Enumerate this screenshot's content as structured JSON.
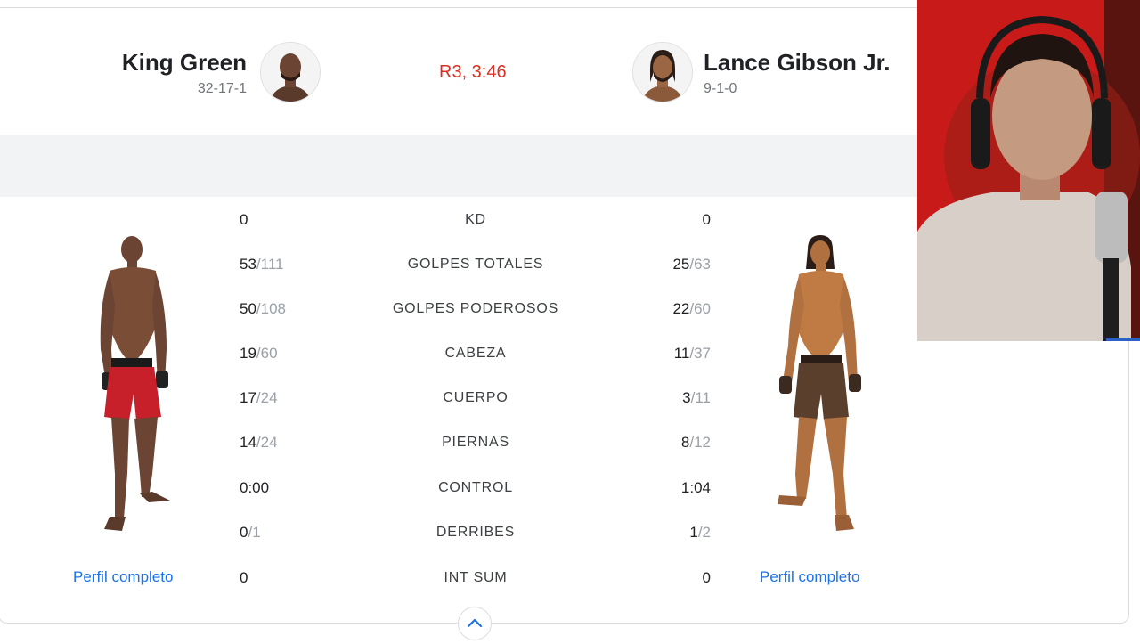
{
  "fight": {
    "status": "R3, 3:46",
    "status_color": "#d93025",
    "link_color": "#1a73e8"
  },
  "fighter_left": {
    "name": "King Green",
    "record": "32-17-1",
    "profile_link": "Perfil completo",
    "shorts_color": "#c8202a"
  },
  "fighter_right": {
    "name": "Lance Gibson Jr.",
    "record": "9-1-0",
    "profile_link": "Perfil completo",
    "shorts_color": "#5a3f2c"
  },
  "stats": [
    {
      "label": "KD",
      "left": "0",
      "left_total": "",
      "right": "0",
      "right_total": ""
    },
    {
      "label": "GOLPES TOTALES",
      "left": "53",
      "left_total": "/111",
      "right": "25",
      "right_total": "/63"
    },
    {
      "label": "GOLPES PODEROSOS",
      "left": "50",
      "left_total": "/108",
      "right": "22",
      "right_total": "/60"
    },
    {
      "label": "CABEZA",
      "left": "19",
      "left_total": "/60",
      "right": "11",
      "right_total": "/37"
    },
    {
      "label": "CUERPO",
      "left": "17",
      "left_total": "/24",
      "right": "3",
      "right_total": "/11"
    },
    {
      "label": "PIERNAS",
      "left": "14",
      "left_total": "/24",
      "right": "8",
      "right_total": "/12"
    },
    {
      "label": "CONTROL",
      "left": "0:00",
      "left_total": "",
      "right": "1:04",
      "right_total": ""
    },
    {
      "label": "DERRIBES",
      "left": "0",
      "left_total": "/1",
      "right": "1",
      "right_total": "/2"
    },
    {
      "label": "INT SUM",
      "left": "0",
      "left_total": "",
      "right": "0",
      "right_total": ""
    }
  ],
  "icons": {
    "collapse": "chevron-up-icon"
  }
}
